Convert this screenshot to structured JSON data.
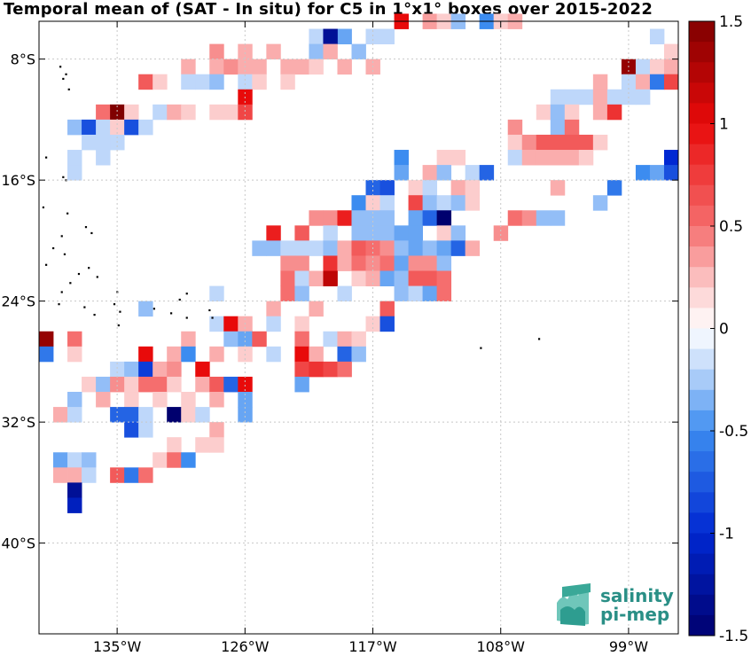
{
  "title": "Temporal mean of (SAT - In situ) for C5 in 1°x1° boxes over 2015-2022",
  "map": {
    "lon_range": [
      140.5,
      95.5
    ],
    "lat_range": [
      -5.5,
      -46.0
    ],
    "lon_ticks": [
      {
        "value": 135,
        "label": "135°W"
      },
      {
        "value": 126,
        "label": "126°W"
      },
      {
        "value": 117,
        "label": "117°W"
      },
      {
        "value": 108,
        "label": "108°W"
      },
      {
        "value": 99,
        "label": "99°W"
      }
    ],
    "lat_ticks": [
      {
        "value": -8,
        "label": "8°S"
      },
      {
        "value": -16,
        "label": "16°S"
      },
      {
        "value": -24,
        "label": "24°S"
      },
      {
        "value": -32,
        "label": "32°S"
      },
      {
        "value": -40,
        "label": "40°S"
      }
    ],
    "grid": true,
    "islands": [
      [
        -139,
        -8.5
      ],
      [
        -138.6,
        -9
      ],
      [
        -138.8,
        -9.3
      ],
      [
        -138.4,
        -10
      ],
      [
        -140,
        -14.5
      ],
      [
        -138.8,
        -15.8
      ],
      [
        -138.6,
        -16
      ],
      [
        -140.2,
        -17.8
      ],
      [
        -138.5,
        -18.2
      ],
      [
        -137.2,
        -19.1
      ],
      [
        -136.8,
        -19.5
      ],
      [
        -138.9,
        -19.7
      ],
      [
        -139.5,
        -20.5
      ],
      [
        -138.7,
        -20.9
      ],
      [
        -140,
        -21.6
      ],
      [
        -137.7,
        -22.2
      ],
      [
        -137,
        -21.8
      ],
      [
        -136.4,
        -22.4
      ],
      [
        -138.3,
        -22.8
      ],
      [
        -138.9,
        -23.4
      ],
      [
        -139.1,
        -24.2
      ],
      [
        -135.2,
        -24.2
      ],
      [
        -135,
        -23.4
      ],
      [
        -132.4,
        -24.5
      ],
      [
        -130.1,
        -25.1
      ],
      [
        -128.3,
        -25.1
      ],
      [
        -134.8,
        -24.7
      ],
      [
        -136.6,
        -24.9
      ],
      [
        -137.3,
        -24.4
      ],
      [
        -134.9,
        -25.6
      ],
      [
        -131.2,
        -24.8
      ],
      [
        -130.6,
        -23.9
      ],
      [
        -130.1,
        -23.5
      ],
      [
        -128.5,
        -24.6
      ],
      [
        -109.4,
        -27.1
      ],
      [
        -105.3,
        -26.5
      ]
    ]
  },
  "colorbar": {
    "min": -1.5,
    "max": 1.5,
    "tick_labels": [
      "1.5",
      "1",
      "0.5",
      "0",
      "-0.5",
      "-1",
      "-1.5"
    ],
    "tick_values": [
      1.5,
      1,
      0.5,
      0,
      -0.5,
      -1,
      -1.5
    ]
  },
  "logo": {
    "line1": "salinity",
    "line2": "pi-mep"
  },
  "chart_data": {
    "type": "heatmap",
    "title": "Temporal mean of (SAT - In situ) for C5 in 1°x1° boxes over 2015-2022",
    "x_label": "",
    "y_label": "",
    "cell_size_deg": 1,
    "value_range": [
      -1.5,
      1.5
    ],
    "cells": [
      [
        -115,
        -5.5,
        1
      ],
      [
        -113,
        -5.5,
        0.35
      ],
      [
        -112,
        -5.5,
        0.2
      ],
      [
        -111,
        -5.5,
        -0.3
      ],
      [
        -109,
        -5.5,
        -0.5
      ],
      [
        -108,
        -5.5,
        0.2
      ],
      [
        -107,
        -5.5,
        0.3
      ],
      [
        -119,
        -6.5,
        -0.4
      ],
      [
        -117,
        -6.5,
        -0.2
      ],
      [
        -121,
        -6.5,
        -0.2
      ],
      [
        -120,
        -6.5,
        -1.3
      ],
      [
        -116,
        -6.5,
        -0.2
      ],
      [
        -97,
        -6.5,
        -0.2
      ],
      [
        -121,
        -7.5,
        -0.3
      ],
      [
        -128,
        -7.5,
        0.4
      ],
      [
        -126,
        -7.5,
        0.3
      ],
      [
        -124,
        -7.5,
        0.3
      ],
      [
        -120,
        -7.5,
        0.3
      ],
      [
        -118,
        -7.5,
        -0.3
      ],
      [
        -96,
        -7.5,
        0.2
      ],
      [
        -130,
        -8.5,
        0.3
      ],
      [
        -128,
        -8.5,
        0.3
      ],
      [
        -127,
        -8.5,
        0.4
      ],
      [
        -126,
        -8.5,
        0.3
      ],
      [
        -125,
        -8.5,
        0.3
      ],
      [
        -123,
        -8.5,
        0.3
      ],
      [
        -122,
        -8.5,
        0.3
      ],
      [
        -121,
        -8.5,
        0.2
      ],
      [
        -119,
        -8.5,
        0.3
      ],
      [
        -117,
        -8.5,
        0.3
      ],
      [
        -99,
        -8.5,
        1.4
      ],
      [
        -98,
        -8.5,
        -0.2
      ],
      [
        -97,
        -8.5,
        0.2
      ],
      [
        -96,
        -8.5,
        0.3
      ],
      [
        -133,
        -9.5,
        0.6
      ],
      [
        -132,
        -9.5,
        0.2
      ],
      [
        -130,
        -9.5,
        -0.2
      ],
      [
        -129,
        -9.5,
        -0.2
      ],
      [
        -128,
        -9.5,
        -0.3
      ],
      [
        -126,
        -9.5,
        -0.2
      ],
      [
        -125,
        -9.5,
        0.2
      ],
      [
        -123,
        -9.5,
        0.2
      ],
      [
        -101,
        -9.5,
        0.3
      ],
      [
        -99,
        -9.5,
        -0.2
      ],
      [
        -98,
        -9.5,
        0.3
      ],
      [
        -97,
        -9.5,
        -0.6
      ],
      [
        -96,
        -9.5,
        0.7
      ],
      [
        -126,
        -10.5,
        1
      ],
      [
        -104,
        -10.5,
        -0.2
      ],
      [
        -103,
        -10.5,
        -0.2
      ],
      [
        -102,
        -10.5,
        -0.2
      ],
      [
        -101,
        -10.5,
        0.3
      ],
      [
        -100,
        -10.5,
        -0.2
      ],
      [
        -99,
        -10.5,
        -0.2
      ],
      [
        -98,
        -10.5,
        -0.2
      ],
      [
        -136,
        -11.5,
        0.5
      ],
      [
        -135,
        -11.5,
        1.5
      ],
      [
        -134,
        -11.5,
        0.2
      ],
      [
        -132,
        -11.5,
        -0.2
      ],
      [
        -131,
        -11.5,
        0.3
      ],
      [
        -130,
        -11.5,
        0.2
      ],
      [
        -128,
        -11.5,
        0.2
      ],
      [
        -127,
        -11.5,
        0.2
      ],
      [
        -126,
        -11.5,
        0.7
      ],
      [
        -105,
        -11.5,
        0.2
      ],
      [
        -104,
        -11.5,
        -0.3
      ],
      [
        -103,
        -11.5,
        0.2
      ],
      [
        -101,
        -11.5,
        0.3
      ],
      [
        -100,
        -11.5,
        0.8
      ],
      [
        -138,
        -12.5,
        -0.3
      ],
      [
        -137,
        -12.5,
        -0.8
      ],
      [
        -136,
        -12.5,
        -0.2
      ],
      [
        -135,
        -12.5,
        0.2
      ],
      [
        -134,
        -12.5,
        -0.8
      ],
      [
        -133,
        -12.5,
        -0.2
      ],
      [
        -107,
        -12.5,
        0.4
      ],
      [
        -104,
        -12.5,
        -0.3
      ],
      [
        -103,
        -12.5,
        0.5
      ],
      [
        -137,
        -13.5,
        -0.2
      ],
      [
        -136,
        -13.5,
        -0.2
      ],
      [
        -135,
        -13.5,
        -0.2
      ],
      [
        -107,
        -13.5,
        0.2
      ],
      [
        -106,
        -13.5,
        0.4
      ],
      [
        -105,
        -13.5,
        0.6
      ],
      [
        -104,
        -13.5,
        0.6
      ],
      [
        -103,
        -13.5,
        0.6
      ],
      [
        -102,
        -13.5,
        0.6
      ],
      [
        -101,
        -13.5,
        0.2
      ],
      [
        -138,
        -14.5,
        -0.2
      ],
      [
        -136,
        -14.5,
        -0.2
      ],
      [
        -115,
        -14.5,
        -0.5
      ],
      [
        -112,
        -14.5,
        0.2
      ],
      [
        -111,
        -14.5,
        0.2
      ],
      [
        -107,
        -14.5,
        -0.2
      ],
      [
        -106,
        -14.5,
        0.3
      ],
      [
        -105,
        -14.5,
        0.3
      ],
      [
        -104,
        -14.5,
        0.3
      ],
      [
        -103,
        -14.5,
        0.3
      ],
      [
        -102,
        -14.5,
        0.2
      ],
      [
        -96,
        -14.5,
        -1
      ],
      [
        -138,
        -15.5,
        -0.2
      ],
      [
        -115,
        -15.5,
        -0.4
      ],
      [
        -113,
        -15.5,
        0.3
      ],
      [
        -112,
        -15.5,
        -0.3
      ],
      [
        -110,
        -15.5,
        -0.2
      ],
      [
        -109,
        -15.5,
        -0.7
      ],
      [
        -98,
        -15.5,
        -0.5
      ],
      [
        -97,
        -15.5,
        -0.4
      ],
      [
        -96,
        -15.5,
        -0.8
      ],
      [
        -117,
        -16.5,
        -0.7
      ],
      [
        -116,
        -16.5,
        -0.8
      ],
      [
        -114,
        -16.5,
        0.2
      ],
      [
        -113,
        -16.5,
        -0.2
      ],
      [
        -111,
        -16.5,
        0.3
      ],
      [
        -110,
        -16.5,
        0.2
      ],
      [
        -104,
        -16.5,
        0.3
      ],
      [
        -100,
        -16.5,
        -0.6
      ],
      [
        -118,
        -17.5,
        -0.5
      ],
      [
        -117,
        -17.5,
        0.2
      ],
      [
        -116,
        -17.5,
        -0.2
      ],
      [
        -114,
        -17.5,
        0.7
      ],
      [
        -113,
        -17.5,
        -0.3
      ],
      [
        -112,
        -17.5,
        -0.2
      ],
      [
        -111,
        -17.5,
        -0.3
      ],
      [
        -110,
        -17.5,
        0.2
      ],
      [
        -101,
        -17.5,
        -0.3
      ],
      [
        -121,
        -18.5,
        0.4
      ],
      [
        -120,
        -18.5,
        0.4
      ],
      [
        -119,
        -18.5,
        0.9
      ],
      [
        -118,
        -18.5,
        -0.3
      ],
      [
        -117,
        -18.5,
        -0.3
      ],
      [
        -116,
        -18.5,
        -0.3
      ],
      [
        -114,
        -18.5,
        -0.4
      ],
      [
        -113,
        -18.5,
        -0.7
      ],
      [
        -112,
        -18.5,
        -1.5
      ],
      [
        -107,
        -18.5,
        0.5
      ],
      [
        -106,
        -18.5,
        0.4
      ],
      [
        -105,
        -18.5,
        -0.3
      ],
      [
        -104,
        -18.5,
        -0.3
      ],
      [
        -124,
        -19.5,
        0.9
      ],
      [
        -122,
        -19.5,
        0.6
      ],
      [
        -120,
        -19.5,
        -0.2
      ],
      [
        -118,
        -19.5,
        -0.3
      ],
      [
        -117,
        -19.5,
        -0.3
      ],
      [
        -116,
        -19.5,
        -0.3
      ],
      [
        -115,
        -19.5,
        -0.4
      ],
      [
        -114,
        -19.5,
        -0.4
      ],
      [
        -112,
        -19.5,
        0.2
      ],
      [
        -111,
        -19.5,
        -0.3
      ],
      [
        -108,
        -19.5,
        0.4
      ],
      [
        -125,
        -20.5,
        -0.3
      ],
      [
        -124,
        -20.5,
        -0.3
      ],
      [
        -123,
        -20.5,
        -0.2
      ],
      [
        -122,
        -20.5,
        -0.2
      ],
      [
        -121,
        -20.5,
        -0.2
      ],
      [
        -120,
        -20.5,
        -0.3
      ],
      [
        -119,
        -20.5,
        0.3
      ],
      [
        -118,
        -20.5,
        0.6
      ],
      [
        -117,
        -20.5,
        0.5
      ],
      [
        -116,
        -20.5,
        0.4
      ],
      [
        -115,
        -20.5,
        -0.3
      ],
      [
        -114,
        -20.5,
        -0.4
      ],
      [
        -113,
        -20.5,
        -0.3
      ],
      [
        -112,
        -20.5,
        -0.4
      ],
      [
        -111,
        -20.5,
        -0.7
      ],
      [
        -110,
        -20.5,
        0.3
      ],
      [
        -123,
        -21.5,
        0.4
      ],
      [
        -122,
        -21.5,
        0.4
      ],
      [
        -120,
        -21.5,
        0.8
      ],
      [
        -119,
        -21.5,
        0.3
      ],
      [
        -118,
        -21.5,
        0.5
      ],
      [
        -117,
        -21.5,
        0.4
      ],
      [
        -116,
        -21.5,
        0.5
      ],
      [
        -115,
        -21.5,
        -0.4
      ],
      [
        -114,
        -21.5,
        0.4
      ],
      [
        -113,
        -21.5,
        0.4
      ],
      [
        -112,
        -21.5,
        -0.3
      ],
      [
        -123,
        -22.5,
        0.5
      ],
      [
        -122,
        -22.5,
        -0.2
      ],
      [
        -121,
        -22.5,
        0.3
      ],
      [
        -120,
        -22.5,
        1.2
      ],
      [
        -118,
        -22.5,
        0.2
      ],
      [
        -117,
        -22.5,
        0.3
      ],
      [
        -116,
        -22.5,
        -0.4
      ],
      [
        -115,
        -22.5,
        -0.3
      ],
      [
        -114,
        -22.5,
        0.6
      ],
      [
        -113,
        -22.5,
        0.6
      ],
      [
        -112,
        -22.5,
        0.5
      ],
      [
        -128,
        -23.5,
        -0.2
      ],
      [
        -123,
        -23.5,
        0.5
      ],
      [
        -122,
        -23.5,
        -0.3
      ],
      [
        -119,
        -23.5,
        -0.2
      ],
      [
        -115,
        -23.5,
        -0.3
      ],
      [
        -114,
        -23.5,
        -0.2
      ],
      [
        -113,
        -23.5,
        -0.4
      ],
      [
        -112,
        -23.5,
        0.5
      ],
      [
        -133,
        -24.5,
        -0.3
      ],
      [
        -124,
        -24.5,
        0.3
      ],
      [
        -121,
        -24.5,
        0.3
      ],
      [
        -116,
        -24.5,
        0.6
      ],
      [
        -128,
        -25.5,
        -0.2
      ],
      [
        -127,
        -25.5,
        1
      ],
      [
        -126,
        -25.5,
        0.3
      ],
      [
        -124,
        -25.5,
        -0.2
      ],
      [
        -122,
        -25.5,
        0.2
      ],
      [
        -117,
        -25.5,
        0.2
      ],
      [
        -116,
        -25.5,
        -0.8
      ],
      [
        -140,
        -26.5,
        1.4
      ],
      [
        -138,
        -26.5,
        0.5
      ],
      [
        -130,
        -26.5,
        0.3
      ],
      [
        -127,
        -26.5,
        -0.3
      ],
      [
        -126,
        -26.5,
        -0.4
      ],
      [
        -125,
        -26.5,
        0.6
      ],
      [
        -122,
        -26.5,
        0.5
      ],
      [
        -120,
        -26.5,
        -0.2
      ],
      [
        -119,
        -26.5,
        0.3
      ],
      [
        -118,
        -26.5,
        0.2
      ],
      [
        -140,
        -27.5,
        -0.6
      ],
      [
        -138,
        -27.5,
        0.2
      ],
      [
        -133,
        -27.5,
        1
      ],
      [
        -131,
        -27.5,
        0.3
      ],
      [
        -130,
        -27.5,
        -0.5
      ],
      [
        -128,
        -27.5,
        0.3
      ],
      [
        -126,
        -27.5,
        0.2
      ],
      [
        -124,
        -27.5,
        -0.2
      ],
      [
        -122,
        -27.5,
        1
      ],
      [
        -121,
        -27.5,
        0.3
      ],
      [
        -119,
        -27.5,
        -0.7
      ],
      [
        -118,
        -27.5,
        -0.3
      ],
      [
        -135,
        -28.5,
        -0.2
      ],
      [
        -134,
        -28.5,
        -0.3
      ],
      [
        -133,
        -28.5,
        -0.9
      ],
      [
        -132,
        -28.5,
        0.3
      ],
      [
        -131,
        -28.5,
        0.4
      ],
      [
        -129,
        -28.5,
        1
      ],
      [
        -122,
        -28.5,
        0.7
      ],
      [
        -121,
        -28.5,
        0.8
      ],
      [
        -120,
        -28.5,
        0.7
      ],
      [
        -119,
        -28.5,
        0.5
      ],
      [
        -137,
        -29.5,
        0.2
      ],
      [
        -136,
        -29.5,
        -0.3
      ],
      [
        -135,
        -29.5,
        0.4
      ],
      [
        -134,
        -29.5,
        0.2
      ],
      [
        -133,
        -29.5,
        0.5
      ],
      [
        -132,
        -29.5,
        0.5
      ],
      [
        -131,
        -29.5,
        0.2
      ],
      [
        -129,
        -29.5,
        0.3
      ],
      [
        -128,
        -29.5,
        0.6
      ],
      [
        -127,
        -29.5,
        -0.7
      ],
      [
        -126,
        -29.5,
        1
      ],
      [
        -122,
        -29.5,
        -0.4
      ],
      [
        -138,
        -30.5,
        -0.3
      ],
      [
        -136,
        -30.5,
        0.3
      ],
      [
        -134,
        -30.5,
        0.2
      ],
      [
        -132,
        -30.5,
        0.2
      ],
      [
        -130,
        -30.5,
        0.2
      ],
      [
        -128,
        -30.5,
        0.3
      ],
      [
        -126,
        -30.5,
        -0.4
      ],
      [
        -139,
        -31.5,
        0.3
      ],
      [
        -138,
        -31.5,
        -0.2
      ],
      [
        -135,
        -31.5,
        -0.7
      ],
      [
        -134,
        -31.5,
        -0.7
      ],
      [
        -133,
        -31.5,
        -0.2
      ],
      [
        -131,
        -31.5,
        -1.5
      ],
      [
        -130,
        -31.5,
        0.2
      ],
      [
        -129,
        -31.5,
        -0.2
      ],
      [
        -126,
        -31.5,
        -0.4
      ],
      [
        -134,
        -32.5,
        -0.8
      ],
      [
        -133,
        -32.5,
        -0.2
      ],
      [
        -128,
        -32.5,
        0.3
      ],
      [
        -131,
        -33.5,
        0.2
      ],
      [
        -129,
        -33.5,
        0.2
      ],
      [
        -128,
        -33.5,
        0.2
      ],
      [
        -139,
        -34.5,
        -0.4
      ],
      [
        -138,
        -34.5,
        -0.2
      ],
      [
        -137,
        -34.5,
        -0.3
      ],
      [
        -132,
        -34.5,
        0.2
      ],
      [
        -131,
        -34.5,
        0.5
      ],
      [
        -130,
        -34.5,
        -0.5
      ],
      [
        -139,
        -35.5,
        0.3
      ],
      [
        -138,
        -35.5,
        0.3
      ],
      [
        -137,
        -35.5,
        -0.2
      ],
      [
        -135,
        -35.5,
        0.6
      ],
      [
        -134,
        -35.5,
        -0.6
      ],
      [
        -133,
        -35.5,
        0.5
      ],
      [
        -138,
        -36.5,
        -1.3
      ],
      [
        -138,
        -37.5,
        -1.1
      ]
    ]
  }
}
